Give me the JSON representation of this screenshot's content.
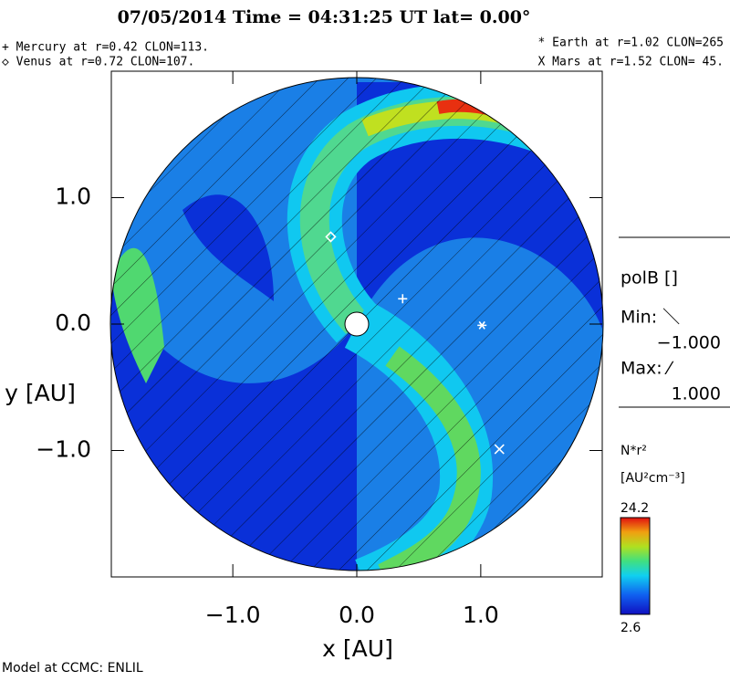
{
  "chart_data": {
    "type": "contour",
    "title": "07/05/2014 Time = 04:31:25 UT lat= 0.00°",
    "notes": [
      "+ Mercury at r=0.42 CLON=113.",
      "◇ Venus at r=0.72 CLON=107.",
      "* Earth at  r=1.02 CLON=265",
      "X Mars at r=1.52 CLON= 45."
    ],
    "x_label": "x [AU]",
    "y_label": "y [AU]",
    "xlim": [
      -1.98,
      1.98
    ],
    "ylim": [
      -2.0,
      2.0
    ],
    "xticks": [
      {
        "value": -1,
        "label": "−1.0"
      },
      {
        "value": 0,
        "label": "0.0"
      },
      {
        "value": 1,
        "label": "1.0"
      }
    ],
    "yticks": [
      {
        "value": -1,
        "label": "−1.0"
      },
      {
        "value": 0,
        "label": "0.0"
      },
      {
        "value": 1,
        "label": "1.0"
      }
    ],
    "planets": {
      "x": [
        0.37,
        -0.21,
        1.01,
        1.15
      ],
      "y": [
        0.2,
        0.69,
        -0.01,
        -0.99
      ]
    },
    "polarity_title": "polB []",
    "polarity_min_label": "Min: ＼",
    "polarity_min": "−1.000",
    "polarity_max_label": "Max: ⁄",
    "polarity_max": "1.000",
    "colorbar_title": "N*r²",
    "colorbar_unit": "[AU²cm⁻³]",
    "colorbar_range": [
      2.6,
      24.2
    ],
    "footer": "Model at CCMC: ENLIL"
  }
}
